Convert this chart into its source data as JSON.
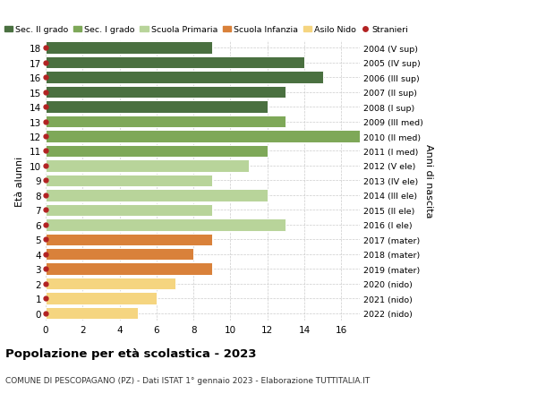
{
  "ages": [
    18,
    17,
    16,
    15,
    14,
    13,
    12,
    11,
    10,
    9,
    8,
    7,
    6,
    5,
    4,
    3,
    2,
    1,
    0
  ],
  "years": [
    "2004 (V sup)",
    "2005 (IV sup)",
    "2006 (III sup)",
    "2007 (II sup)",
    "2008 (I sup)",
    "2009 (III med)",
    "2010 (II med)",
    "2011 (I med)",
    "2012 (V ele)",
    "2013 (IV ele)",
    "2014 (III ele)",
    "2015 (II ele)",
    "2016 (I ele)",
    "2017 (mater)",
    "2018 (mater)",
    "2019 (mater)",
    "2020 (nido)",
    "2021 (nido)",
    "2022 (nido)"
  ],
  "values": [
    9,
    14,
    15,
    13,
    12,
    13,
    17,
    12,
    11,
    9,
    12,
    9,
    13,
    9,
    8,
    9,
    7,
    6,
    5
  ],
  "colors": [
    "#4a7040",
    "#4a7040",
    "#4a7040",
    "#4a7040",
    "#4a7040",
    "#7ea858",
    "#7ea858",
    "#7ea858",
    "#b8d49a",
    "#b8d49a",
    "#b8d49a",
    "#b8d49a",
    "#b8d49a",
    "#d9813a",
    "#d9813a",
    "#d9813a",
    "#f5d580",
    "#f5d580",
    "#f5d580"
  ],
  "legend_labels": [
    "Sec. II grado",
    "Sec. I grado",
    "Scuola Primaria",
    "Scuola Infanzia",
    "Asilo Nido",
    "Stranieri"
  ],
  "legend_colors": [
    "#4a7040",
    "#7ea858",
    "#b8d49a",
    "#d9813a",
    "#f5d580",
    "#b22222"
  ],
  "stranieri_color": "#b22222",
  "title_main": "Popolazione per età scolastica - 2023",
  "subtitle": "COMUNE DI PESCOPAGANO (PZ) - Dati ISTAT 1° gennaio 2023 - Elaborazione TUTTITALIA.IT",
  "ylabel": "Età alunni",
  "ylabel_right": "Anni di nascita",
  "xlim": [
    0,
    17
  ],
  "xticks": [
    0,
    2,
    4,
    6,
    8,
    10,
    12,
    14,
    16
  ],
  "bg_color": "#ffffff",
  "grid_color": "#cccccc",
  "bar_height": 0.82
}
